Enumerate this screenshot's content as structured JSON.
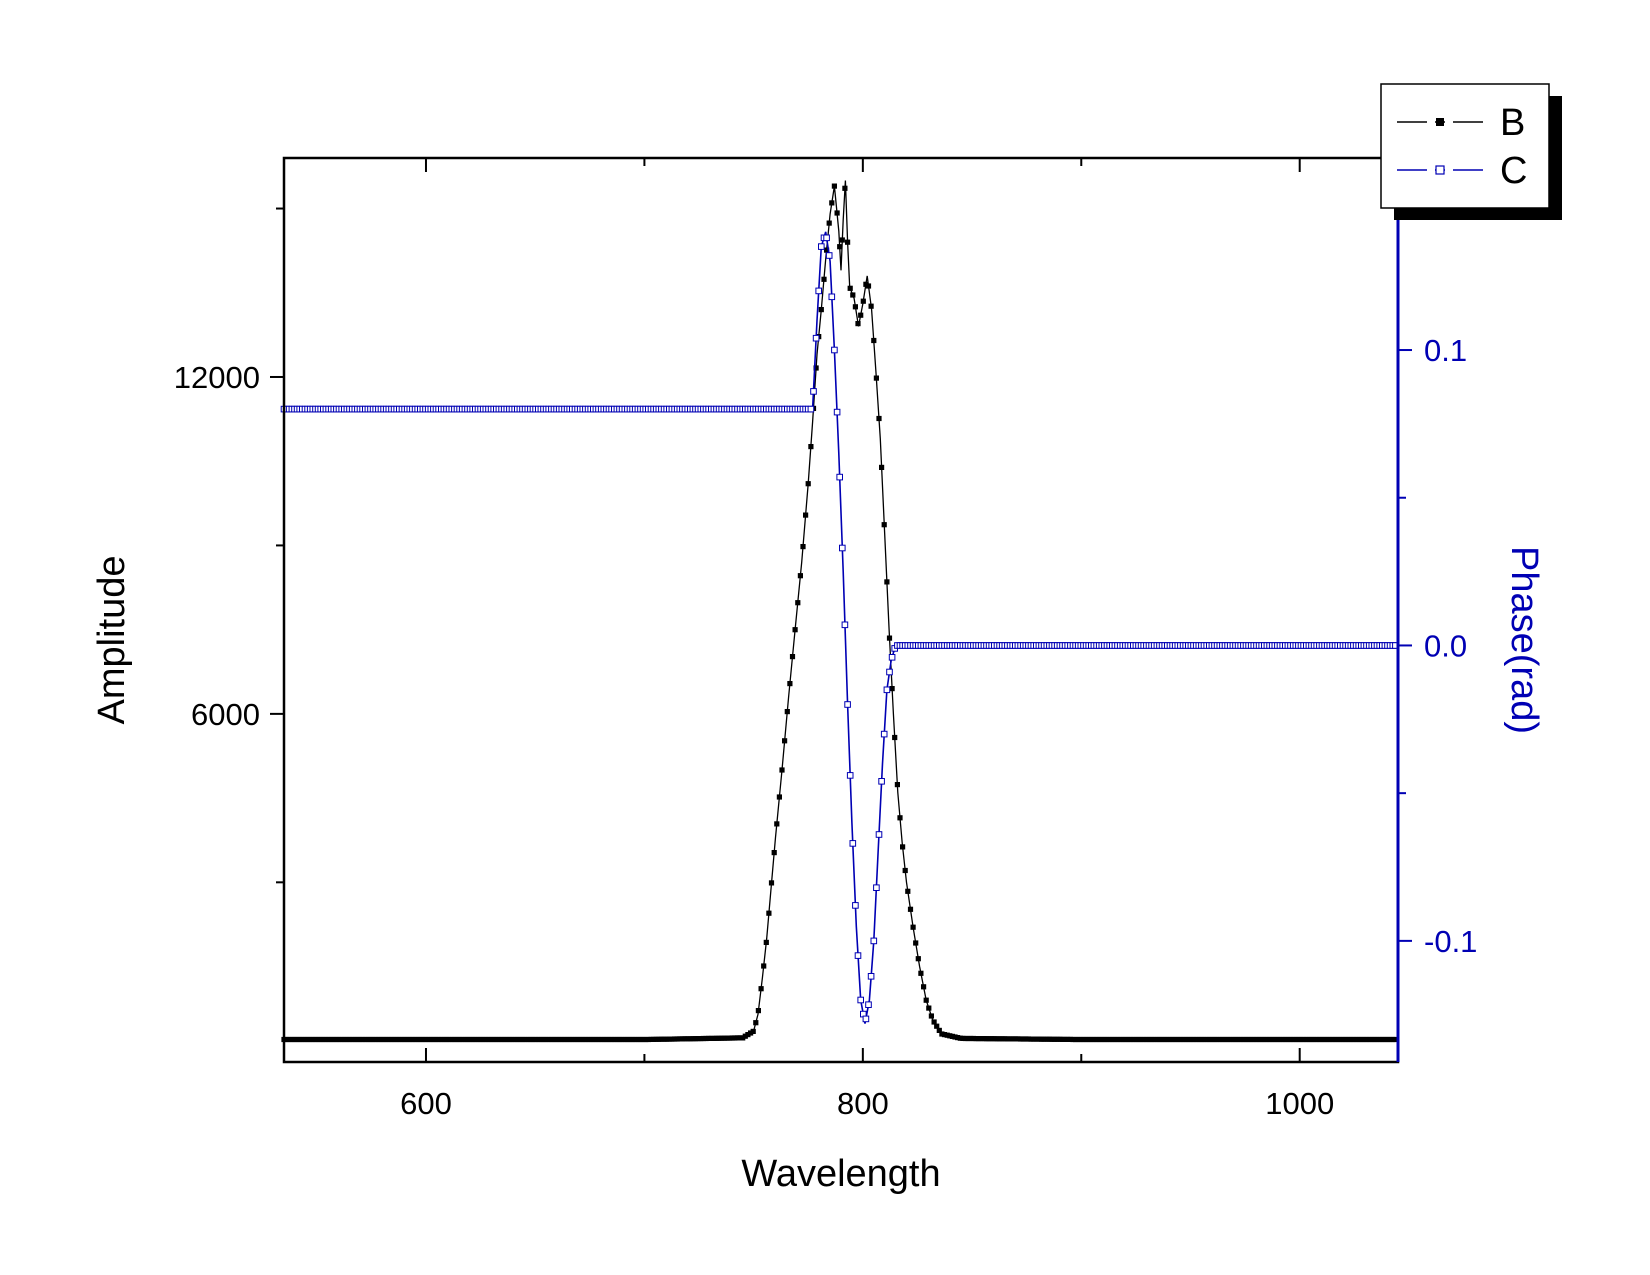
{
  "chart_data": {
    "type": "line",
    "xlabel": "Wavelength",
    "ylabel_left": "Amplitude",
    "ylabel_right": "Phase(rad)",
    "xlim": [
      535,
      1045
    ],
    "ylim_left": [
      -200,
      15900
    ],
    "ylim_right": [
      -0.141,
      0.165
    ],
    "x_ticks": [
      600,
      800,
      1000
    ],
    "x_minor_ticks": [
      700,
      900
    ],
    "y_left_ticks": [
      6000,
      12000
    ],
    "y_left_minor_ticks": [
      3000,
      9000,
      15000
    ],
    "y_right_ticks": [
      -0.1,
      0.0,
      0.1
    ],
    "y_right_tick_labels": [
      "-0.1",
      "0.0",
      "0.1"
    ],
    "y_right_minor_ticks": [
      -0.05,
      0.05
    ],
    "grid": false,
    "legend_position": "top-right",
    "colors": {
      "B": "#000000",
      "C": "#0000b4"
    },
    "series": [
      {
        "name": "B",
        "axis": "left",
        "marker": "filled-square",
        "points": [
          [
            535,
            200
          ],
          [
            600,
            200
          ],
          [
            700,
            200
          ],
          [
            745,
            230
          ],
          [
            750,
            350
          ],
          [
            752,
            650
          ],
          [
            754,
            1300
          ],
          [
            756,
            2000
          ],
          [
            758,
            2900
          ],
          [
            760,
            3800
          ],
          [
            763,
            5000
          ],
          [
            766,
            6300
          ],
          [
            769,
            7500
          ],
          [
            772,
            8700
          ],
          [
            775,
            10100
          ],
          [
            777,
            11200
          ],
          [
            779,
            12400
          ],
          [
            781,
            13200
          ],
          [
            783,
            14100
          ],
          [
            785,
            14900
          ],
          [
            787,
            15400
          ],
          [
            789,
            14600
          ],
          [
            790,
            13900
          ],
          [
            791,
            14800
          ],
          [
            792,
            15500
          ],
          [
            793,
            14400
          ],
          [
            794,
            13600
          ],
          [
            796,
            13400
          ],
          [
            798,
            12900
          ],
          [
            800,
            13300
          ],
          [
            802,
            13800
          ],
          [
            804,
            13200
          ],
          [
            806,
            12100
          ],
          [
            808,
            10900
          ],
          [
            810,
            9200
          ],
          [
            812,
            7500
          ],
          [
            814,
            6000
          ],
          [
            816,
            4600
          ],
          [
            818,
            3700
          ],
          [
            820,
            3000
          ],
          [
            823,
            2200
          ],
          [
            826,
            1500
          ],
          [
            829,
            900
          ],
          [
            832,
            550
          ],
          [
            836,
            300
          ],
          [
            845,
            220
          ],
          [
            900,
            200
          ],
          [
            1000,
            200
          ],
          [
            1045,
            200
          ]
        ]
      },
      {
        "name": "C",
        "axis": "right",
        "marker": "open-square",
        "points": [
          [
            535,
            0.08
          ],
          [
            650,
            0.08
          ],
          [
            750,
            0.08
          ],
          [
            777,
            0.08
          ],
          [
            779,
            0.11
          ],
          [
            781,
            0.135
          ],
          [
            783,
            0.14
          ],
          [
            785,
            0.13
          ],
          [
            787,
            0.1
          ],
          [
            789,
            0.065
          ],
          [
            791,
            0.025
          ],
          [
            793,
            -0.02
          ],
          [
            795,
            -0.06
          ],
          [
            797,
            -0.095
          ],
          [
            799,
            -0.12
          ],
          [
            801,
            -0.128
          ],
          [
            803,
            -0.12
          ],
          [
            805,
            -0.1
          ],
          [
            807,
            -0.07
          ],
          [
            809,
            -0.04
          ],
          [
            811,
            -0.015
          ],
          [
            813,
            -0.005
          ],
          [
            815,
            0.0
          ],
          [
            850,
            0.0
          ],
          [
            950,
            0.0
          ],
          [
            1045,
            0.0
          ]
        ]
      }
    ]
  }
}
